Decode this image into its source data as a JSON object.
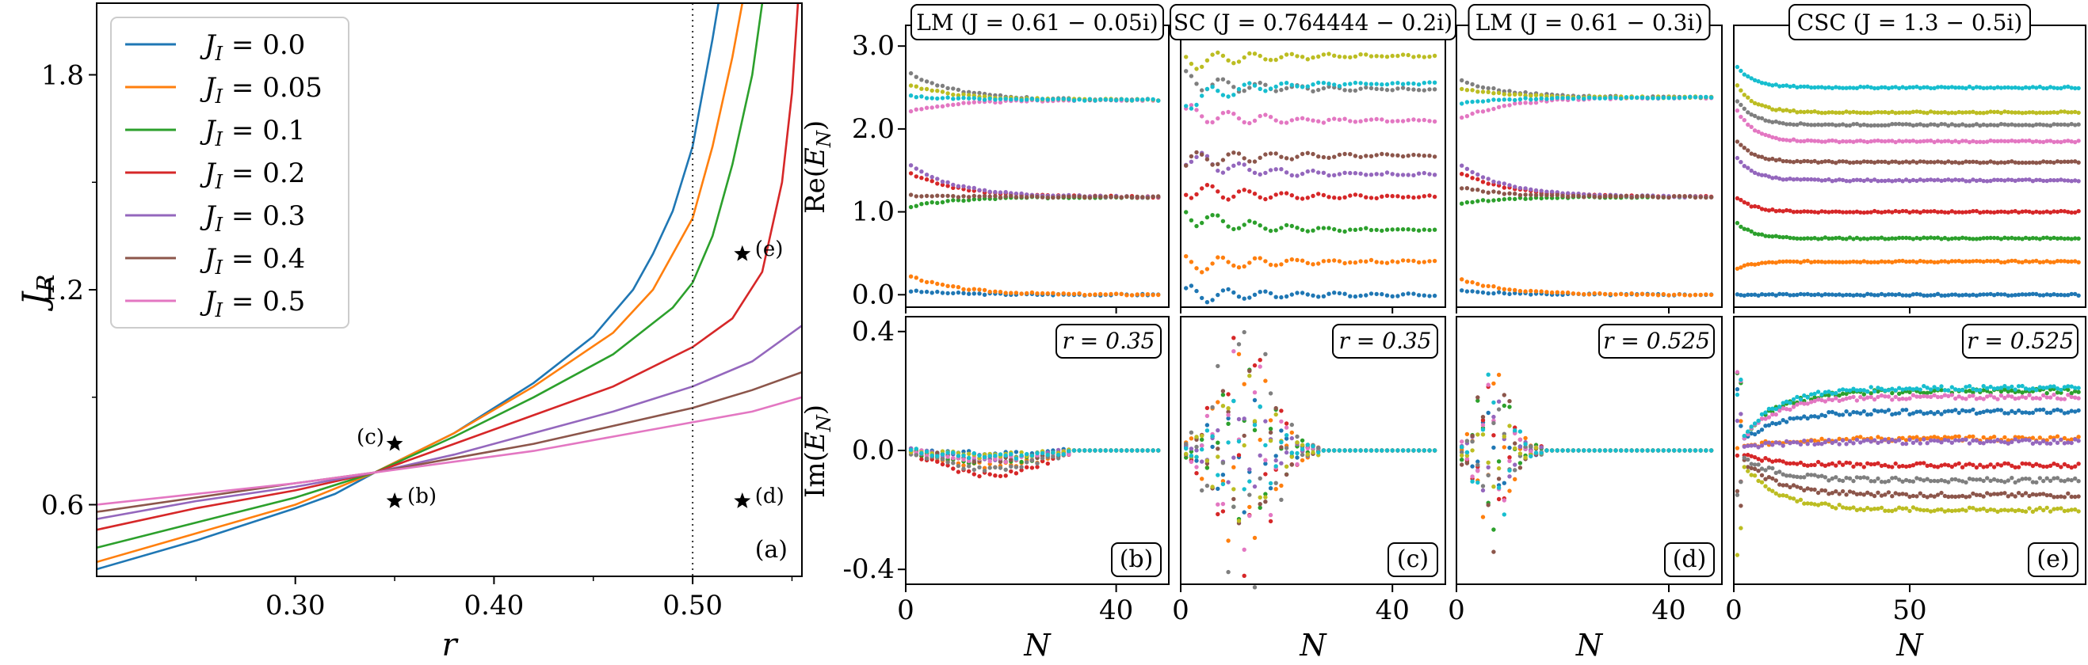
{
  "colors": {
    "tab": [
      "#1f77b4",
      "#ff7f0e",
      "#2ca02c",
      "#d62728",
      "#9467bd",
      "#8c564b",
      "#e377c2",
      "#7f7f7f",
      "#bcbd22",
      "#17becf"
    ]
  },
  "chart_data": [
    {
      "type": "line",
      "panel": "(a)",
      "xlabel": "r",
      "ylabel": "J_R",
      "xlim": [
        0.2,
        0.555
      ],
      "ylim": [
        0.4,
        2.0
      ],
      "xticks": [
        0.3,
        0.4,
        0.5
      ],
      "xtick_labels": [
        "0.30",
        "0.40",
        "0.50"
      ],
      "yticks": [
        0.6,
        1.2,
        1.8
      ],
      "ytick_labels": [
        "0.6",
        "1.2",
        "1.8"
      ],
      "vline": 0.5,
      "legend_position": "top-left",
      "series": [
        {
          "name": "J_I = 0.0",
          "label_main": "J",
          "label_sub": "I",
          "label_val": " = 0.0",
          "color": "#1f77b4",
          "points": [
            [
              0.2,
              0.42
            ],
            [
              0.25,
              0.5
            ],
            [
              0.3,
              0.59
            ],
            [
              0.32,
              0.63
            ],
            [
              0.34,
              0.69
            ],
            [
              0.38,
              0.8
            ],
            [
              0.42,
              0.94
            ],
            [
              0.45,
              1.07
            ],
            [
              0.47,
              1.2
            ],
            [
              0.48,
              1.3
            ],
            [
              0.49,
              1.42
            ],
            [
              0.5,
              1.6
            ],
            [
              0.505,
              1.75
            ],
            [
              0.51,
              1.9
            ],
            [
              0.513,
              2.0
            ]
          ]
        },
        {
          "name": "J_I = 0.05",
          "label_main": "J",
          "label_sub": "I",
          "label_val": " = 0.05",
          "color": "#ff7f0e",
          "points": [
            [
              0.2,
              0.44
            ],
            [
              0.25,
              0.52
            ],
            [
              0.3,
              0.6
            ],
            [
              0.34,
              0.69
            ],
            [
              0.38,
              0.8
            ],
            [
              0.42,
              0.93
            ],
            [
              0.46,
              1.08
            ],
            [
              0.48,
              1.2
            ],
            [
              0.5,
              1.4
            ],
            [
              0.51,
              1.6
            ],
            [
              0.52,
              1.85
            ],
            [
              0.525,
              2.0
            ]
          ]
        },
        {
          "name": "J_I = 0.1",
          "label_main": "J",
          "label_sub": "I",
          "label_val": " = 0.1",
          "color": "#2ca02c",
          "points": [
            [
              0.2,
              0.48
            ],
            [
              0.25,
              0.55
            ],
            [
              0.3,
              0.62
            ],
            [
              0.34,
              0.69
            ],
            [
              0.38,
              0.79
            ],
            [
              0.42,
              0.9
            ],
            [
              0.46,
              1.02
            ],
            [
              0.49,
              1.15
            ],
            [
              0.5,
              1.22
            ],
            [
              0.51,
              1.35
            ],
            [
              0.52,
              1.55
            ],
            [
              0.53,
              1.8
            ],
            [
              0.535,
              2.0
            ]
          ]
        },
        {
          "name": "J_I = 0.2",
          "label_main": "J",
          "label_sub": "I",
          "label_val": " = 0.2",
          "color": "#d62728",
          "points": [
            [
              0.2,
              0.53
            ],
            [
              0.25,
              0.59
            ],
            [
              0.3,
              0.64
            ],
            [
              0.34,
              0.69
            ],
            [
              0.38,
              0.77
            ],
            [
              0.42,
              0.85
            ],
            [
              0.46,
              0.93
            ],
            [
              0.5,
              1.04
            ],
            [
              0.52,
              1.12
            ],
            [
              0.535,
              1.25
            ],
            [
              0.545,
              1.5
            ],
            [
              0.55,
              1.75
            ],
            [
              0.553,
              2.0
            ]
          ]
        },
        {
          "name": "J_I = 0.3",
          "label_main": "J",
          "label_sub": "I",
          "label_val": " = 0.3",
          "color": "#9467bd",
          "points": [
            [
              0.2,
              0.56
            ],
            [
              0.25,
              0.61
            ],
            [
              0.3,
              0.65
            ],
            [
              0.34,
              0.69
            ],
            [
              0.38,
              0.74
            ],
            [
              0.42,
              0.8
            ],
            [
              0.46,
              0.86
            ],
            [
              0.5,
              0.93
            ],
            [
              0.53,
              1.0
            ],
            [
              0.555,
              1.1
            ]
          ]
        },
        {
          "name": "J_I = 0.4",
          "label_main": "J",
          "label_sub": "I",
          "label_val": " = 0.4",
          "color": "#8c564b",
          "points": [
            [
              0.2,
              0.58
            ],
            [
              0.25,
              0.62
            ],
            [
              0.3,
              0.66
            ],
            [
              0.34,
              0.69
            ],
            [
              0.38,
              0.73
            ],
            [
              0.42,
              0.77
            ],
            [
              0.46,
              0.82
            ],
            [
              0.5,
              0.87
            ],
            [
              0.53,
              0.92
            ],
            [
              0.555,
              0.97
            ]
          ]
        },
        {
          "name": "J_I = 0.5",
          "label_main": "J",
          "label_sub": "I",
          "label_val": " = 0.5",
          "color": "#e377c2",
          "points": [
            [
              0.2,
              0.6
            ],
            [
              0.25,
              0.63
            ],
            [
              0.3,
              0.66
            ],
            [
              0.34,
              0.69
            ],
            [
              0.38,
              0.72
            ],
            [
              0.42,
              0.75
            ],
            [
              0.46,
              0.79
            ],
            [
              0.5,
              0.83
            ],
            [
              0.53,
              0.86
            ],
            [
              0.555,
              0.9
            ]
          ]
        }
      ],
      "annotations": [
        {
          "label": "(b)",
          "x": 0.35,
          "y": 0.61
        },
        {
          "label": "(c)",
          "x": 0.35,
          "y": 0.77
        },
        {
          "label": "(d)",
          "x": 0.525,
          "y": 0.61
        },
        {
          "label": "(e)",
          "x": 0.525,
          "y": 1.3
        }
      ]
    },
    {
      "type": "scatter",
      "panels": [
        {
          "id": "b",
          "title_prefix": "LM",
          "title_math": "(J = 0.61 − 0.05i)",
          "tag": "(b)",
          "r_label": "r = 0.35",
          "xlim": [
            0,
            50
          ],
          "xticks": [
            0,
            40
          ],
          "xtick_labels": [
            "0",
            "40"
          ],
          "xlabel": "N",
          "nmax": 48,
          "re_levels": [
            0.0,
            0.0,
            1.18,
            1.18,
            1.18,
            1.18,
            2.35,
            2.35,
            2.35,
            2.35
          ],
          "re_start": [
            0.05,
            0.25,
            1.05,
            1.5,
            1.6,
            1.2,
            2.2,
            2.7,
            2.55,
            2.4
          ],
          "im_amp": [
            0.02,
            -0.05,
            0.06,
            -0.08,
            0.04,
            -0.03,
            0.05,
            -0.06,
            0.03,
            -0.02
          ]
        },
        {
          "id": "c",
          "title_prefix": "SC",
          "title_math": "(J = 0.764444 − 0.2i)",
          "tag": "(c)",
          "r_label": "r = 0.35",
          "xlim": [
            0,
            50
          ],
          "xticks": [
            0,
            40
          ],
          "xtick_labels": [
            "0",
            "40"
          ],
          "xlabel": "N",
          "nmax": 48,
          "re_levels": [
            0.0,
            0.4,
            0.78,
            1.18,
            1.45,
            1.68,
            2.1,
            2.48,
            2.88,
            2.55
          ],
          "re_start": [
            0.0,
            0.35,
            1.0,
            1.3,
            1.7,
            1.6,
            2.2,
            2.6,
            2.8,
            2.3
          ],
          "im_amp": [
            0.15,
            -0.25,
            0.2,
            -0.3,
            0.1,
            -0.2,
            0.25,
            -0.35,
            0.18,
            -0.12
          ]
        },
        {
          "id": "d",
          "title_prefix": "LM",
          "title_math": "(J = 0.61 − 0.3i)",
          "tag": "(d)",
          "r_label": "r = 0.525",
          "xlim": [
            0,
            50
          ],
          "xticks": [
            0,
            40
          ],
          "xtick_labels": [
            "0",
            "40"
          ],
          "xlabel": "N",
          "nmax": 48,
          "re_levels": [
            0.0,
            0.0,
            1.18,
            1.18,
            1.18,
            1.18,
            2.38,
            2.38,
            2.38,
            2.38
          ],
          "re_start": [
            0.05,
            0.2,
            1.1,
            1.5,
            1.6,
            1.3,
            2.1,
            2.6,
            2.5,
            2.3
          ],
          "im_amp": [
            0.1,
            -0.2,
            0.18,
            -0.15,
            0.12,
            -0.22,
            0.15,
            -0.1,
            0.08,
            -0.18
          ]
        },
        {
          "id": "e",
          "title_prefix": "CSC",
          "title_math": "(J = 1.3 − 0.5i)",
          "tag": "(e)",
          "r_label": "r = 0.525",
          "xlim": [
            0,
            100
          ],
          "xticks": [
            0,
            50
          ],
          "xtick_labels": [
            "0",
            "50"
          ],
          "xlabel": "N",
          "nmax": 98,
          "re_levels": [
            0.0,
            0.4,
            0.68,
            1.0,
            1.38,
            1.6,
            1.85,
            2.05,
            2.2,
            2.5
          ],
          "re_start": [
            0.0,
            0.3,
            0.9,
            1.2,
            1.7,
            1.9,
            2.3,
            2.4,
            2.6,
            2.8
          ],
          "im_amp": [
            0.13,
            0.04,
            0.2,
            -0.05,
            0.03,
            -0.15,
            0.18,
            -0.1,
            -0.2,
            0.21
          ]
        }
      ],
      "top_ylabel": "Re(E_N)",
      "bottom_ylabel": "Im(E_N)",
      "top_ylim": [
        -0.15,
        3.25
      ],
      "top_yticks": [
        0.0,
        1.0,
        2.0,
        3.0
      ],
      "top_ytick_labels": [
        "0.0",
        "1.0",
        "2.0",
        "3.0"
      ],
      "bottom_ylim": [
        -0.45,
        0.45
      ],
      "bottom_yticks": [
        -0.4,
        0.0,
        0.4
      ],
      "bottom_ytick_labels": [
        "-0.4",
        "0.0",
        "0.4"
      ]
    }
  ]
}
